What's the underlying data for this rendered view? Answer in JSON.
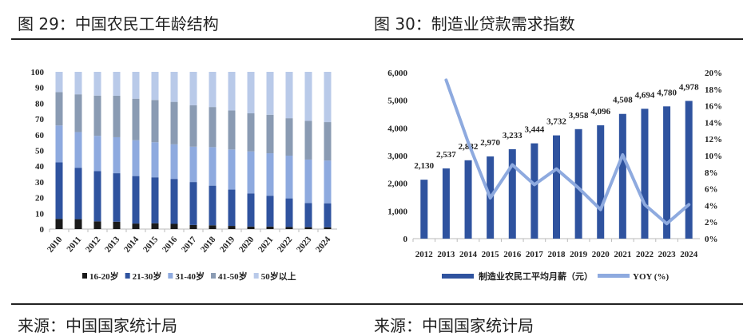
{
  "left": {
    "title": "图 29：中国农民工年龄结构",
    "source": "来源：中国国家统计局"
  },
  "right": {
    "title": "图 30：制造业贷款需求指数",
    "source": "来源：中国国家统计局"
  },
  "chart_data": [
    {
      "type": "bar",
      "stacked": true,
      "categories": [
        "2010",
        "2011",
        "2012",
        "2013",
        "2014",
        "2015",
        "2016",
        "2017",
        "2018",
        "2019",
        "2020",
        "2021",
        "2022",
        "2023",
        "2024"
      ],
      "ylim": [
        0,
        100
      ],
      "yticks": [
        0,
        10,
        20,
        30,
        40,
        50,
        60,
        70,
        80,
        90,
        100
      ],
      "legend_position": "bottom",
      "grid": false,
      "series": [
        {
          "name": "16-20岁",
          "color": "#1a1a1a",
          "values": [
            6.5,
            6.3,
            4.9,
            4.7,
            3.5,
            3.7,
            3.3,
            2.6,
            2.4,
            2.0,
            1.6,
            1.6,
            1.3,
            1.2,
            1.1
          ]
        },
        {
          "name": "21-30岁",
          "color": "#2f539f",
          "values": [
            35.9,
            32.7,
            31.9,
            30.8,
            30.2,
            29.2,
            28.6,
            27.3,
            25.2,
            23.1,
            21.1,
            19.6,
            18.2,
            15.4,
            15.3
          ]
        },
        {
          "name": "31-40岁",
          "color": "#8eaadf",
          "values": [
            23.5,
            22.7,
            22.5,
            22.9,
            22.8,
            22.3,
            22.0,
            22.5,
            24.5,
            25.5,
            26.7,
            27.0,
            27.2,
            27.6,
            27.2
          ]
        },
        {
          "name": "41-50岁",
          "color": "#8a9bb3",
          "values": [
            21.2,
            24.0,
            25.6,
            26.4,
            26.4,
            26.9,
            27.0,
            26.3,
            25.5,
            24.8,
            24.2,
            24.5,
            23.8,
            24.6,
            24.4
          ]
        },
        {
          "name": "50岁以上",
          "color": "#b9cae9",
          "values": [
            12.9,
            14.3,
            15.1,
            15.2,
            17.1,
            17.9,
            19.1,
            21.3,
            22.4,
            24.6,
            26.4,
            27.3,
            29.5,
            31.2,
            32.0
          ]
        }
      ]
    },
    {
      "type": "bar+line",
      "categories": [
        "2012",
        "2013",
        "2014",
        "2015",
        "2016",
        "2017",
        "2018",
        "2019",
        "2020",
        "2021",
        "2022",
        "2023",
        "2024"
      ],
      "ylim": [
        0,
        6000
      ],
      "yticks": [
        "0",
        "1,000",
        "2,000",
        "3,000",
        "4,000",
        "5,000",
        "6,000"
      ],
      "y2lim": [
        0,
        20
      ],
      "y2ticks": [
        "0%",
        "2%",
        "4%",
        "6%",
        "8%",
        "10%",
        "12%",
        "14%",
        "16%",
        "18%",
        "20%"
      ],
      "legend_position": "bottom",
      "grid": false,
      "series": [
        {
          "name": "制造业农民工平均月薪（元）",
          "type": "bar",
          "axis": "left",
          "color": "#2f539f",
          "values": [
            2130,
            2537,
            2832,
            2970,
            3233,
            3444,
            3732,
            3958,
            4096,
            4508,
            4694,
            4780,
            4978
          ],
          "labels": [
            "2,130",
            "2,537",
            "2,832",
            "2,970",
            "3,233",
            "3,444",
            "3,732",
            "3,958",
            "4,096",
            "4,508",
            "4,694",
            "4,780",
            "4,978"
          ]
        },
        {
          "name": "YOY (%)",
          "type": "line",
          "axis": "right",
          "color": "#8eaadf",
          "values": [
            null,
            19.1,
            11.6,
            4.9,
            8.9,
            6.5,
            8.4,
            6.1,
            3.5,
            10.1,
            4.1,
            1.8,
            4.1
          ]
        }
      ]
    }
  ]
}
